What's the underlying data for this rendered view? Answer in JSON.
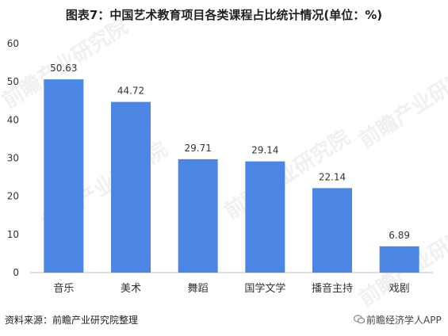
{
  "title": "图表7：中国艺术教育项目各类课程占比统计情况(单位：%)",
  "source": "资料来源：前瞻产业研究院整理",
  "brand": "前瞻经济学人APP",
  "watermark": "前瞻产业研究院",
  "colors": {
    "bar": "#4c86e4",
    "axis": "#bfbfbf",
    "text": "#333333"
  },
  "chart_data": {
    "type": "bar",
    "title": "图表7：中国艺术教育项目各类课程占比统计情况(单位：%)",
    "xlabel": "",
    "ylabel": "",
    "categories": [
      "音乐",
      "美术",
      "舞蹈",
      "国学文学",
      "播音主持",
      "戏剧"
    ],
    "values": [
      50.63,
      44.72,
      29.71,
      29.14,
      22.14,
      6.89
    ],
    "value_labels": [
      "50.63",
      "44.72",
      "29.71",
      "29.14",
      "22.14",
      "6.89"
    ],
    "ylim": [
      0,
      60
    ],
    "yticks": [
      "0",
      "10",
      "20",
      "30",
      "40",
      "50",
      "60"
    ],
    "grid": false,
    "legend": "none"
  }
}
